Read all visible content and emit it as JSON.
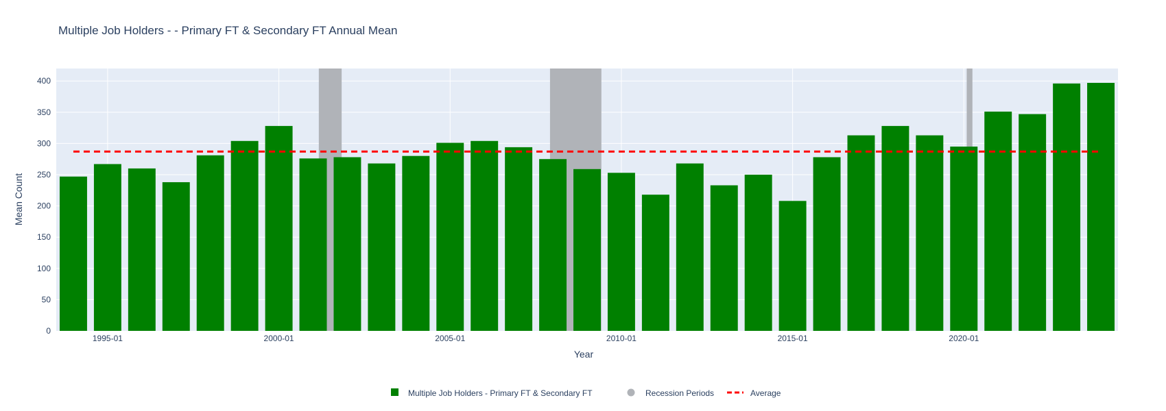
{
  "chart_data": {
    "type": "bar",
    "title": "Multiple Job Holders - - Primary FT & Secondary FT Annual Mean",
    "xlabel": "Year",
    "ylabel": "Mean Count",
    "ylim": [
      0,
      420
    ],
    "yticks": [
      0,
      50,
      100,
      150,
      200,
      250,
      300,
      350,
      400
    ],
    "xticks": [
      {
        "year": 1995,
        "label": "1995-01"
      },
      {
        "year": 2000,
        "label": "2000-01"
      },
      {
        "year": 2005,
        "label": "2005-01"
      },
      {
        "year": 2010,
        "label": "2010-01"
      },
      {
        "year": 2015,
        "label": "2015-01"
      },
      {
        "year": 2020,
        "label": "2020-01"
      }
    ],
    "grid": true,
    "legend_position": "bottom-center",
    "series": [
      {
        "name": "Multiple Job Holders - Primary FT & Secondary FT",
        "color": "#008000",
        "x": [
          1994,
          1995,
          1996,
          1997,
          1998,
          1999,
          2000,
          2001,
          2002,
          2003,
          2004,
          2005,
          2006,
          2007,
          2008,
          2009,
          2010,
          2011,
          2012,
          2013,
          2014,
          2015,
          2016,
          2017,
          2018,
          2019,
          2020,
          2021,
          2022,
          2023,
          2024
        ],
        "values": [
          247,
          267,
          260,
          238,
          281,
          304,
          328,
          276,
          278,
          268,
          280,
          301,
          304,
          294,
          275,
          259,
          253,
          218,
          268,
          233,
          250,
          208,
          278,
          313,
          328,
          313,
          295,
          351,
          347,
          396,
          397
        ]
      }
    ],
    "recessions": {
      "name": "Recession Periods",
      "color": "#b0b3b8",
      "periods": [
        {
          "start": "2001-03",
          "end": "2001-11"
        },
        {
          "start": "2007-12",
          "end": "2009-06"
        },
        {
          "start": "2020-02",
          "end": "2020-04"
        }
      ]
    },
    "average": {
      "name": "Average",
      "value": 287,
      "color": "#ff0000",
      "style": "dashed"
    }
  }
}
